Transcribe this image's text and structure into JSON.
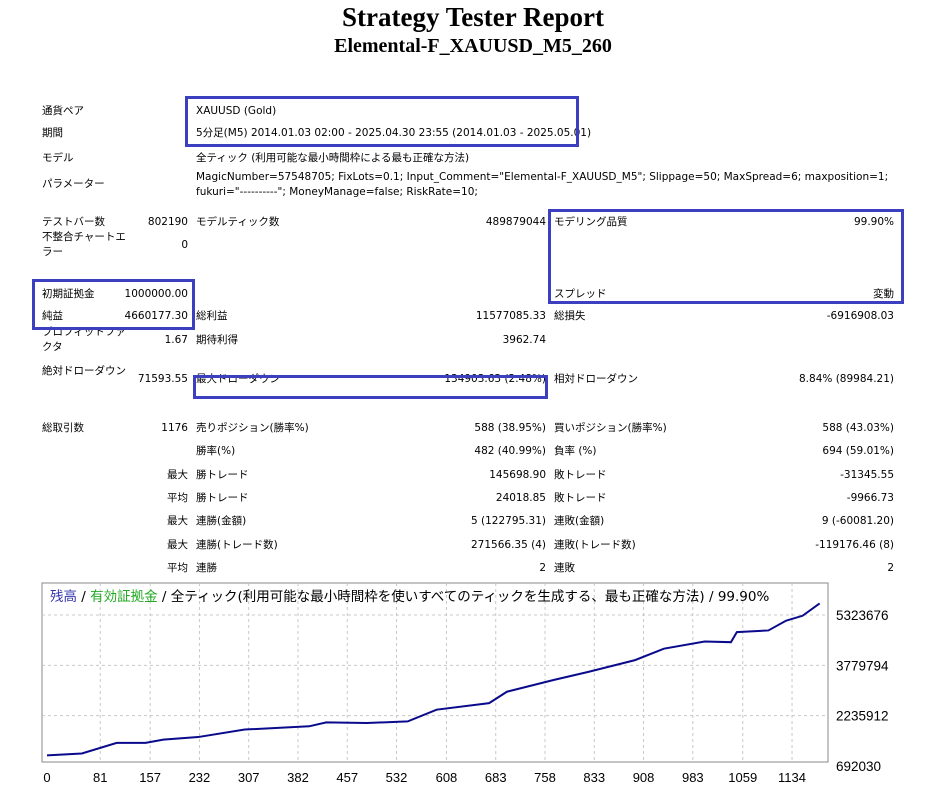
{
  "header": {
    "title": "Strategy Tester Report",
    "subtitle": "Elemental-F_XAUUSD_M5_260"
  },
  "rows": [
    [
      "通貨ペア",
      "",
      "XAUUSD (Gold)",
      "",
      "",
      ""
    ],
    [
      "期間",
      "",
      "5分足(M5) 2014.01.03 02:00 - 2025.04.30 23:55 (2014.01.03 - 2025.05.01)",
      "",
      "",
      ""
    ],
    [
      "モデル",
      "",
      "全ティック (利用可能な最小時間枠による最も正確な方法)",
      "",
      "",
      ""
    ],
    [
      "パラメーター",
      "",
      "MagicNumber=57548705; FixLots=0.1; Input_Comment=\"Elemental-F_XAUUSD_M5\"; Slippage=50; MaxSpread=6; maxposition=1; fukuri=\"----------\"; MoneyManage=false; RiskRate=10;",
      "",
      "",
      ""
    ],
    [
      "テストバー数",
      "802190",
      "モデルティック数",
      "489879044",
      "モデリング品質",
      "99.90%"
    ],
    [
      "不整合チャートエラー",
      "0",
      "",
      "",
      "",
      ""
    ],
    [
      "初期証拠金",
      "1000000.00",
      "",
      "",
      "スプレッド",
      "変動"
    ],
    [
      "純益",
      "4660177.30",
      "総利益",
      "11577085.33",
      "総損失",
      "-6916908.03"
    ],
    [
      "プロフィットファクタ",
      "1.67",
      "期待利得",
      "3962.74",
      "",
      ""
    ],
    [
      "絶対ドローダウン",
      "71593.55",
      "最大ドローダウン",
      "134903.63 (2.48%)",
      "相対ドローダウン",
      "8.84% (89984.21)"
    ],
    [
      "総取引数",
      "1176",
      "売りポジション(勝率%)",
      "588 (38.95%)",
      "買いポジション(勝率%)",
      "588 (43.03%)"
    ],
    [
      "",
      "",
      "勝率(%)",
      "482 (40.99%)",
      "負率 (%)",
      "694 (59.01%)"
    ],
    [
      "",
      "最大",
      "勝トレード",
      "145698.90",
      "敗トレード",
      "-31345.55"
    ],
    [
      "",
      "平均",
      "勝トレード",
      "24018.85",
      "敗トレード",
      "-9966.73"
    ],
    [
      "",
      "最大",
      "連勝(金額)",
      "5 (122795.31)",
      "連敗(金額)",
      "9 (-60081.20)"
    ],
    [
      "",
      "最大",
      "連勝(トレード数)",
      "271566.35 (4)",
      "連敗(トレード数)",
      "-119176.46 (8)"
    ],
    [
      "",
      "平均",
      "連勝",
      "2",
      "連敗",
      "2"
    ]
  ],
  "chart_data": {
    "type": "line",
    "title_parts": {
      "balance": "残高",
      "sep1": " / ",
      "equity": "有効証拠金",
      "rest": " / 全ティック(利用可能な最小時間枠を使いすべてのティックを生成する、最も正確な方法) / 99.90%"
    },
    "colors": {
      "balance": "#3333aa",
      "equity": "#22aa22",
      "line": "#0a0a8c",
      "grid": "#c8c8c8"
    },
    "xticks": [
      0,
      81,
      157,
      232,
      307,
      382,
      457,
      532,
      608,
      683,
      758,
      833,
      908,
      983,
      1059,
      1134
    ],
    "yticks": [
      692030,
      2235912,
      3779794,
      5323676
    ],
    "xlim": [
      0,
      1176
    ],
    "series": [
      {
        "name": "残高",
        "x": [
          0,
          53,
          106,
          150,
          177,
          230,
          301,
          399,
          425,
          487,
          549,
          593,
          673,
          700,
          771,
          824,
          895,
          939,
          1001,
          1041,
          1050,
          1098,
          1125,
          1150,
          1176
        ],
        "y": [
          1017000,
          1077000,
          1400000,
          1400000,
          1500000,
          1580000,
          1810000,
          1910000,
          2030000,
          2010000,
          2060000,
          2420000,
          2620000,
          2970000,
          3330000,
          3580000,
          3940000,
          4290000,
          4510000,
          4490000,
          4800000,
          4850000,
          5150000,
          5300000,
          5680000
        ]
      }
    ]
  }
}
